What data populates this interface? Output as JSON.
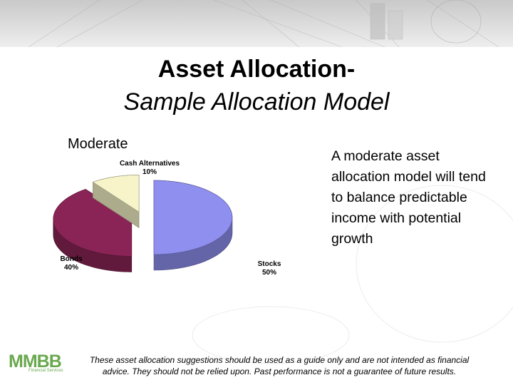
{
  "title": "Asset Allocation-",
  "subtitle": "Sample Allocation Model",
  "chart_data": {
    "type": "pie",
    "title": "Moderate",
    "categories": [
      "Stocks",
      "Bonds",
      "Cash Alternatives"
    ],
    "values": [
      50,
      40,
      10
    ],
    "value_labels": [
      "50%",
      "40%",
      "10%"
    ],
    "colors": [
      "#8f8ff0",
      "#8b2456",
      "#f6f4c8"
    ]
  },
  "description": "A moderate asset allocation model will tend to balance predictable income with potential growth",
  "disclaimer": "These asset allocation suggestions should be used as a guide only and are not intended as financial advice. They should not be relied upon. Past performance is not a guarantee of future results.",
  "logo": {
    "name": "MMBB",
    "tagline": "Financial Services"
  }
}
